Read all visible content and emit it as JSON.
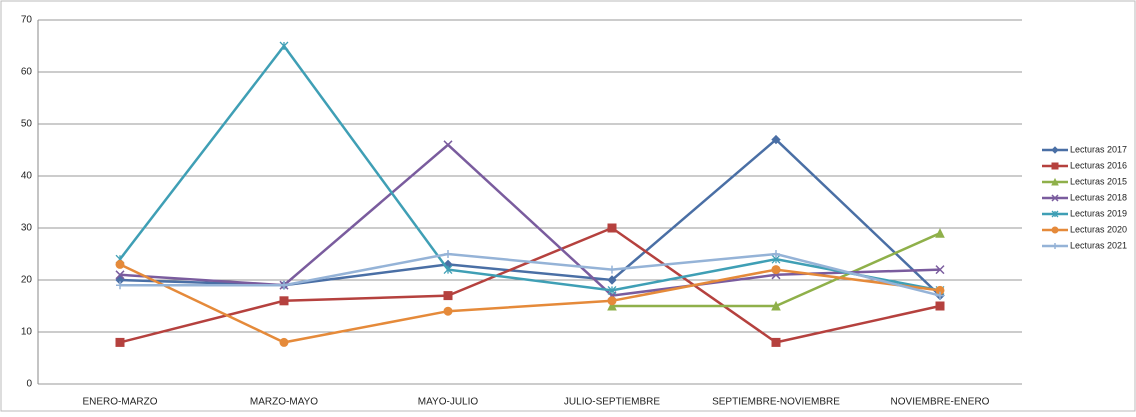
{
  "chart_data": {
    "type": "line",
    "categories": [
      "ENERO-MARZO",
      "MARZO-MAYO",
      "MAYO-JULIO",
      "JULIO-SEPTIEMBRE",
      "SEPTIEMBRE-NOVIEMBRE",
      "NOVIEMBRE-ENERO"
    ],
    "series": [
      {
        "name": "Lecturas 2017",
        "color": "#4a6fa5",
        "marker": "diamond",
        "values": [
          20,
          19,
          23,
          20,
          47,
          17
        ]
      },
      {
        "name": "Lecturas 2016",
        "color": "#b5413e",
        "marker": "square",
        "values": [
          8,
          16,
          17,
          30,
          8,
          15
        ]
      },
      {
        "name": "Lecturas 2015",
        "color": "#8fb04a",
        "marker": "triangle",
        "values": [
          null,
          null,
          null,
          15,
          15,
          29
        ]
      },
      {
        "name": "Lecturas 2018",
        "color": "#7a5c9e",
        "marker": "x",
        "values": [
          21,
          19,
          46,
          17,
          21,
          22
        ]
      },
      {
        "name": "Lecturas 2019",
        "color": "#3f9fb5",
        "marker": "star",
        "values": [
          24,
          65,
          22,
          18,
          24,
          18
        ]
      },
      {
        "name": "Lecturas 2020",
        "color": "#e58a3a",
        "marker": "circle",
        "values": [
          23,
          8,
          14,
          16,
          22,
          18
        ]
      },
      {
        "name": "Lecturas 2021",
        "color": "#95b3d7",
        "marker": "plus",
        "values": [
          19,
          19,
          25,
          22,
          25,
          17
        ]
      }
    ],
    "ylim": [
      0,
      70
    ],
    "yticks": [
      0,
      10,
      20,
      30,
      40,
      50,
      60,
      70
    ],
    "grid": true,
    "legend": "right"
  }
}
